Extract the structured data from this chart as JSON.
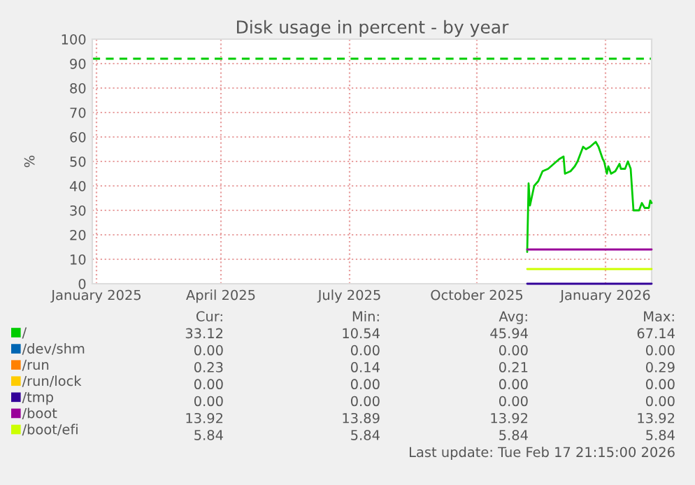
{
  "chart_data": {
    "type": "line",
    "title": "Disk usage in percent - by year",
    "ylabel": "%",
    "xlim": [
      "2025-01-13",
      "2026-02-17"
    ],
    "ylim": [
      0,
      100
    ],
    "yticks": [
      0,
      10,
      20,
      30,
      40,
      50,
      60,
      70,
      80,
      90,
      100
    ],
    "xticks": [
      {
        "value": "2025-01-16",
        "label": "January 2025"
      },
      {
        "value": "2025-04-15",
        "label": "April 2025"
      },
      {
        "value": "2025-07-16",
        "label": "July 2025"
      },
      {
        "value": "2025-10-15",
        "label": "October 2025"
      },
      {
        "value": "2026-01-15",
        "label": "January 2026"
      }
    ],
    "grid": true,
    "legend": "bottom",
    "ref_lines": [
      {
        "axis": "y",
        "value": 92,
        "color": "#00cc00",
        "line_style": "dashed"
      }
    ],
    "series": [
      {
        "name": "/",
        "color": "#00cc00",
        "x": [
          "2025-11-20",
          "2025-11-21",
          "2025-11-22",
          "2025-11-25",
          "2025-11-28",
          "2025-12-01",
          "2025-12-05",
          "2025-12-09",
          "2025-12-13",
          "2025-12-16",
          "2025-12-17",
          "2025-12-21",
          "2025-12-24",
          "2025-12-26",
          "2025-12-28",
          "2025-12-30",
          "2026-01-01",
          "2026-01-04",
          "2026-01-06",
          "2026-01-08",
          "2026-01-10",
          "2026-01-13",
          "2026-01-14",
          "2026-01-16",
          "2026-01-17",
          "2026-01-19",
          "2026-01-22",
          "2026-01-25",
          "2026-01-26",
          "2026-01-29",
          "2026-01-31",
          "2026-02-02",
          "2026-02-04",
          "2026-02-08",
          "2026-02-10",
          "2026-02-12",
          "2026-02-15",
          "2026-02-16",
          "2026-02-17"
        ],
        "values": [
          13,
          41,
          32,
          40,
          42,
          46,
          47,
          49,
          51,
          52,
          45,
          46,
          48,
          50,
          53,
          56,
          55,
          56,
          57,
          58,
          56,
          51,
          50,
          45,
          48,
          45,
          46,
          49,
          47,
          47,
          50,
          47,
          30,
          30,
          33,
          31,
          31,
          34,
          33
        ]
      },
      {
        "name": "/dev/shm",
        "color": "#0066b3"
      },
      {
        "name": "/run",
        "color": "#ff8000"
      },
      {
        "name": "/run/lock",
        "color": "#ffcc00"
      },
      {
        "name": "/tmp",
        "color": "#330099",
        "x": [
          "2025-11-20",
          "2026-02-17"
        ],
        "values": [
          0,
          0
        ]
      },
      {
        "name": "/boot",
        "color": "#990099",
        "x": [
          "2025-11-20",
          "2026-02-17"
        ],
        "values": [
          14,
          14
        ]
      },
      {
        "name": "/boot/efi",
        "color": "#ccff00",
        "x": [
          "2025-11-20",
          "2026-02-17"
        ],
        "values": [
          6,
          6
        ]
      }
    ],
    "annotations": [
      "Cur:",
      "Min:",
      "Avg:",
      "Max:",
      "33.12",
      "10.54",
      "45.94",
      "67.14",
      "0.00",
      "0.00",
      "0.00",
      "0.00",
      "0.23",
      "0.14",
      "0.21",
      "0.29",
      "0.00",
      "0.00",
      "0.00",
      "0.00",
      "0.00",
      "0.00",
      "0.00",
      "0.00",
      "13.92",
      "13.89",
      "13.92",
      "13.92",
      "5.84",
      "5.84",
      "5.84",
      "5.84",
      "Last update: Tue Feb 17 21:15:00 2026"
    ]
  }
}
